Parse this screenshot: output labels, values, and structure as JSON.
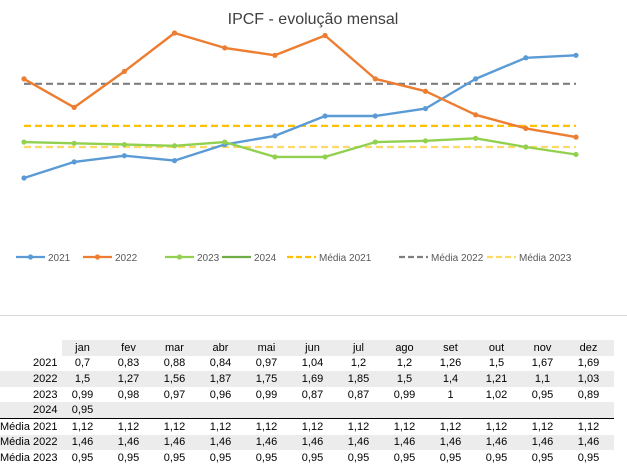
{
  "chart_data": {
    "type": "line",
    "title": "IPCF - evolução mensal",
    "categories": [
      "jan",
      "fev",
      "mar",
      "abr",
      "mai",
      "jun",
      "jul",
      "ago",
      "set",
      "out",
      "nov",
      "dez"
    ],
    "series": [
      {
        "name": "2021",
        "color": "#5b9bd5",
        "style": "solid-marker",
        "values": [
          0.7,
          0.83,
          0.88,
          0.84,
          0.97,
          1.04,
          1.2,
          1.2,
          1.26,
          1.5,
          1.67,
          1.69
        ]
      },
      {
        "name": "2022",
        "color": "#ed7d31",
        "style": "solid-marker",
        "values": [
          1.5,
          1.27,
          1.56,
          1.87,
          1.75,
          1.69,
          1.85,
          1.5,
          1.4,
          1.21,
          1.1,
          1.03
        ]
      },
      {
        "name": "2023",
        "color": "#92d050",
        "style": "solid-marker",
        "values": [
          0.99,
          0.98,
          0.97,
          0.96,
          0.99,
          0.87,
          0.87,
          0.99,
          1,
          1.02,
          0.95,
          0.89
        ]
      },
      {
        "name": "2024",
        "color": "#70ad47",
        "style": "solid",
        "values": [
          0.95,
          null,
          null,
          null,
          null,
          null,
          null,
          null,
          null,
          null,
          null,
          null
        ]
      },
      {
        "name": "Média 2021",
        "color": "#ffc000",
        "style": "dashed",
        "values": [
          1.12,
          1.12,
          1.12,
          1.12,
          1.12,
          1.12,
          1.12,
          1.12,
          1.12,
          1.12,
          1.12,
          1.12
        ]
      },
      {
        "name": "Média 2022",
        "color": "#7f7f7f",
        "style": "dashed",
        "values": [
          1.46,
          1.46,
          1.46,
          1.46,
          1.46,
          1.46,
          1.46,
          1.46,
          1.46,
          1.46,
          1.46,
          1.46
        ]
      },
      {
        "name": "Média 2023",
        "color": "#ffd966",
        "style": "dashed",
        "values": [
          0.95,
          0.95,
          0.95,
          0.95,
          0.95,
          0.95,
          0.95,
          0.95,
          0.95,
          0.95,
          0.95,
          0.95
        ]
      }
    ],
    "ylim": [
      0.45,
      2.1
    ],
    "grid": false,
    "legend_position": "bottom"
  },
  "table": {
    "months": [
      "jan",
      "fev",
      "mar",
      "abr",
      "mai",
      "jun",
      "jul",
      "ago",
      "set",
      "out",
      "nov",
      "dez"
    ],
    "rows": [
      {
        "label": "2021",
        "values": [
          "0,7",
          "0,83",
          "0,88",
          "0,84",
          "0,97",
          "1,04",
          "1,2",
          "1,2",
          "1,26",
          "1,5",
          "1,67",
          "1,69"
        ]
      },
      {
        "label": "2022",
        "values": [
          "1,5",
          "1,27",
          "1,56",
          "1,87",
          "1,75",
          "1,69",
          "1,85",
          "1,5",
          "1,4",
          "1,21",
          "1,1",
          "1,03"
        ]
      },
      {
        "label": "2023",
        "values": [
          "0,99",
          "0,98",
          "0,97",
          "0,96",
          "0,99",
          "0,87",
          "0,87",
          "0,99",
          "1",
          "1,02",
          "0,95",
          "0,89"
        ]
      },
      {
        "label": "2024",
        "values": [
          "0,95",
          "",
          "",
          "",
          "",
          "",
          "",
          "",
          "",
          "",
          "",
          ""
        ]
      },
      {
        "label": "Média 2021",
        "values": [
          "1,12",
          "1,12",
          "1,12",
          "1,12",
          "1,12",
          "1,12",
          "1,12",
          "1,12",
          "1,12",
          "1,12",
          "1,12",
          "1,12"
        ]
      },
      {
        "label": "Média 2022",
        "values": [
          "1,46",
          "1,46",
          "1,46",
          "1,46",
          "1,46",
          "1,46",
          "1,46",
          "1,46",
          "1,46",
          "1,46",
          "1,46",
          "1,46"
        ]
      },
      {
        "label": "Média 2023",
        "values": [
          "0,95",
          "0,95",
          "0,95",
          "0,95",
          "0,95",
          "0,95",
          "0,95",
          "0,95",
          "0,95",
          "0,95",
          "0,95",
          "0,95"
        ]
      }
    ]
  }
}
